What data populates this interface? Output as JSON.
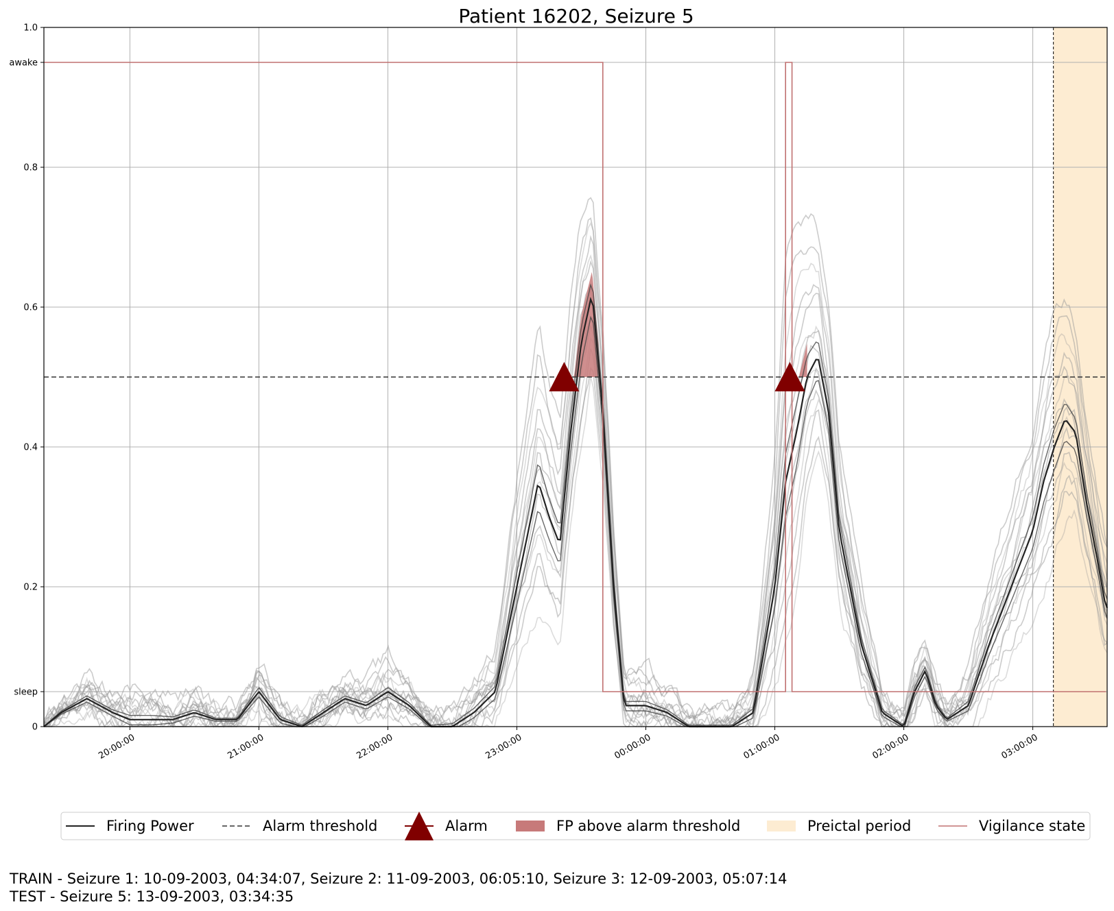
{
  "chart_data": {
    "type": "line",
    "title": "Patient 16202, Seizure 5",
    "xlabel": "",
    "ylabel": "",
    "x_range": [
      "19:20:00",
      "03:34:35"
    ],
    "ylim": [
      0,
      1.0
    ],
    "x_ticks": [
      "20:00:00",
      "21:00:00",
      "22:00:00",
      "23:00:00",
      "00:00:00",
      "01:00:00",
      "02:00:00",
      "03:00:00"
    ],
    "y_ticks": [
      {
        "label": "0",
        "value": 0
      },
      {
        "label": "sleep",
        "value": 0.05
      },
      {
        "label": "0.2",
        "value": 0.2
      },
      {
        "label": "0.4",
        "value": 0.4
      },
      {
        "label": "0.6",
        "value": 0.6
      },
      {
        "label": "0.8",
        "value": 0.8
      },
      {
        "label": "awake",
        "value": 0.95
      },
      {
        "label": "1.0",
        "value": 1.0
      }
    ],
    "grid": true,
    "alarm_threshold": 0.5,
    "firing_power": {
      "times": [
        "19:20",
        "19:28",
        "19:40",
        "19:52",
        "20:00",
        "20:10",
        "20:20",
        "20:30",
        "20:40",
        "20:50",
        "21:00",
        "21:10",
        "21:20",
        "21:30",
        "21:40",
        "21:50",
        "22:00",
        "22:10",
        "22:20",
        "22:30",
        "22:40",
        "22:50",
        "23:00",
        "23:10",
        "23:15",
        "23:20",
        "23:25",
        "23:30",
        "23:35",
        "23:40",
        "23:45",
        "23:50",
        "00:00",
        "00:10",
        "00:20",
        "00:30",
        "00:40",
        "00:50",
        "01:00",
        "01:05",
        "01:10",
        "01:15",
        "01:20",
        "01:25",
        "01:30",
        "01:40",
        "01:50",
        "02:00",
        "02:05",
        "02:10",
        "02:15",
        "02:20",
        "02:30",
        "02:40",
        "02:50",
        "03:00",
        "03:05",
        "03:10",
        "03:15",
        "03:20",
        "03:25",
        "03:30",
        "03:34"
      ],
      "mean": [
        0.0,
        0.02,
        0.04,
        0.02,
        0.01,
        0.01,
        0.01,
        0.02,
        0.01,
        0.01,
        0.05,
        0.01,
        0.0,
        0.02,
        0.04,
        0.03,
        0.05,
        0.03,
        0.0,
        0.0,
        0.02,
        0.05,
        0.2,
        0.35,
        0.3,
        0.26,
        0.42,
        0.55,
        0.62,
        0.45,
        0.2,
        0.03,
        0.03,
        0.02,
        0.0,
        0.0,
        0.0,
        0.02,
        0.2,
        0.35,
        0.42,
        0.5,
        0.53,
        0.45,
        0.28,
        0.12,
        0.02,
        0.0,
        0.05,
        0.08,
        0.03,
        0.01,
        0.03,
        0.12,
        0.2,
        0.28,
        0.35,
        0.4,
        0.44,
        0.42,
        0.32,
        0.24,
        0.17
      ],
      "spread": [
        0.0,
        0.01,
        0.02,
        0.02,
        0.03,
        0.03,
        0.02,
        0.02,
        0.01,
        0.01,
        0.03,
        0.02,
        0.01,
        0.02,
        0.02,
        0.02,
        0.03,
        0.02,
        0.01,
        0.02,
        0.03,
        0.04,
        0.1,
        0.15,
        0.13,
        0.12,
        0.12,
        0.12,
        0.1,
        0.08,
        0.06,
        0.03,
        0.03,
        0.02,
        0.01,
        0.01,
        0.01,
        0.03,
        0.12,
        0.2,
        0.2,
        0.15,
        0.12,
        0.1,
        0.08,
        0.05,
        0.02,
        0.01,
        0.03,
        0.03,
        0.02,
        0.01,
        0.03,
        0.06,
        0.08,
        0.1,
        0.12,
        0.13,
        0.12,
        0.1,
        0.08,
        0.06,
        0.06
      ]
    },
    "alarms": [
      {
        "time": "23:22",
        "value": 0.5
      },
      {
        "time": "01:07",
        "value": 0.5
      }
    ],
    "fp_above_threshold": [
      {
        "start": "23:20",
        "end": "23:38"
      },
      {
        "start": "01:03",
        "end": "01:15"
      }
    ],
    "preictal_period": {
      "start": "03:09:35",
      "end": "03:34:35"
    },
    "vigilance_state": {
      "times": [
        "19:20",
        "23:40",
        "23:40",
        "01:05",
        "01:05",
        "01:08",
        "01:08",
        "03:34"
      ],
      "values": [
        0.95,
        0.95,
        0.05,
        0.05,
        0.95,
        0.95,
        0.05,
        0.05
      ]
    },
    "legend": {
      "placement": "bottom-center",
      "entries": [
        "Firing Power",
        "Alarm threshold",
        "Alarm",
        "FP above alarm threshold",
        "Preictal period",
        "Vigilance state"
      ]
    },
    "colors": {
      "firing_power": "#222222",
      "ensemble": "#9a9a9a",
      "threshold": "#333333",
      "alarm": "#800000",
      "fp_fill": "#c77a7a",
      "preictal": "#fdecd2",
      "vigilance": "#c07070",
      "grid": "#b0b0b0"
    }
  },
  "footer": {
    "train": "TRAIN - Seizure 1: 10-09-2003, 04:34:07, Seizure 2: 11-09-2003, 06:05:10, Seizure 3: 12-09-2003, 05:07:14",
    "test": "TEST - Seizure 5: 13-09-2003, 03:34:35"
  }
}
